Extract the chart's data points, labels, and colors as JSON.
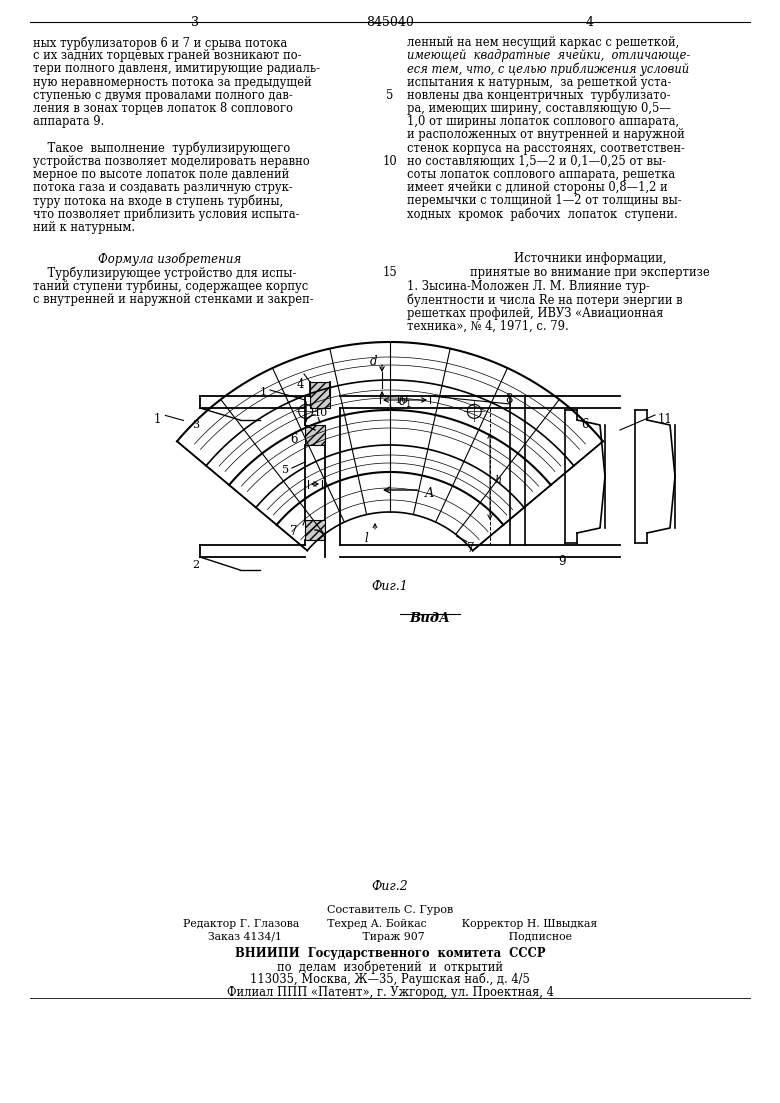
{
  "page_color": "#ffffff",
  "header_num_left": "3",
  "header_num_center": "845040",
  "header_num_right": "4",
  "col_left_lines": [
    "ных турбулизаторов 6 и 7 и срыва потока",
    "с их задних торцевых граней возникают по-",
    "тери полного давленя, имитирующие радиаль-",
    "ную неравномерность потока за предыдущей",
    "ступенью с двумя провалами полного дав-",
    "ления в зонах торцев лопаток 8 соплового",
    "аппарата 9.",
    "",
    "    Такое  выполнение  турбулизирующего",
    "устройства позволяет моделировать неравно",
    "мерное по высоте лопаток поле давлений",
    "потока газа и создавать различную струк-",
    "туру потока на входе в ступень турбины,",
    "что позволяет приблизить условия испыта-",
    "ний к натурным."
  ],
  "col_right_lines": [
    "ленный на нем несущий каркас с решеткой,",
    "имеющей  квадратные  ячейки,  отличающе-",
    "еся тем, что, с целью приближения условий",
    "испытания к натурным,  за решеткой уста-",
    "новлены два концентричных  турбулизато-",
    "ра, имеющих ширину, составляющую 0,5—",
    "1,0 от ширины лопаток соплового аппарата,",
    "и расположенных от внутренней и наружной",
    "стенок корпуса на расстоянях, соответствен-",
    "но составляющих 1,5—2 и 0,1—0,25 от вы-",
    "соты лопаток соплового аппарата, решетка",
    "имеет ячейки с длиной стороны 0,8—1,2 и",
    "перемычки с толщиной 1—2 от толщины вы-",
    "ходных  кромок  рабочих  лопаток  ступени."
  ],
  "formula_title": "Формула изобретения",
  "formula_lines": [
    "    Турбулизирующее устройство для испы-",
    "таний ступени турбины, содержащее корпус",
    "с внутренней и наружной стенками и закреп-"
  ],
  "sources_title": "Источники информации,",
  "sources_subtitle": "принятые во внимание при экспертизе",
  "sources_lines": [
    "1. Зысина-Моложен Л. М. Влияние тур-",
    "булентности и числа Re на потери энергии в",
    "решетках профилей, ИВУЗ «Авиационная",
    "техника», № 4, 1971, с. 79."
  ],
  "fig1_caption": "Фиг.1",
  "fig2_caption": "Фиг.2",
  "fig2_view_label": "ВидА",
  "footer_lines": [
    "Составитель С. Гуров",
    "Редактор Г. Глазова        Техред А. Бойкас          Корректор Н. Швыдкая",
    "Заказ 4134/1                       Тираж 907                        Подписное",
    "ВНИИПИ  Государственного  комитета  СССР",
    "по  делам  изобретений  и  открытий",
    "113035, Москва, Ж—35, Раушская наб., д. 4/5",
    "Филиал ППП «Патент», г. Ужгород, ул. Проектная, 4"
  ]
}
